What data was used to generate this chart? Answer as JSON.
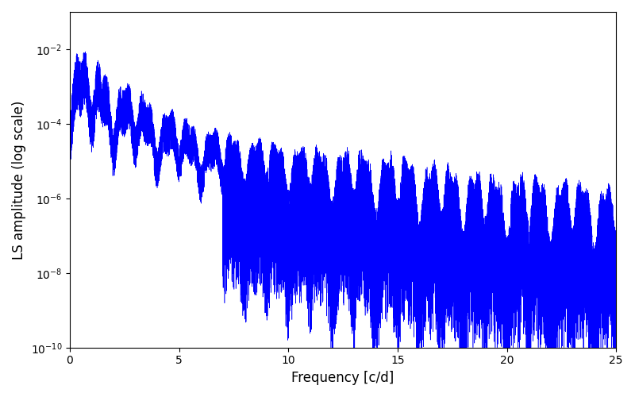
{
  "xlabel": "Frequency [c/d]",
  "ylabel": "LS amplitude (log scale)",
  "xlim": [
    0,
    25
  ],
  "ylim": [
    1e-10,
    0.1
  ],
  "line_color": "#0000ff",
  "line_width": 0.4,
  "background_color": "#ffffff",
  "figsize": [
    8.0,
    5.0
  ],
  "dpi": 100
}
